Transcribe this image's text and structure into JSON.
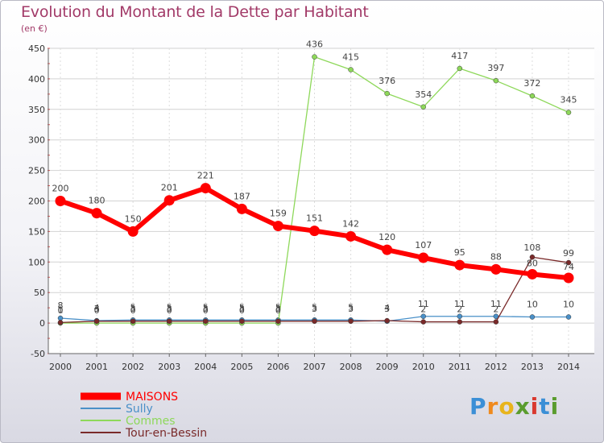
{
  "header": {
    "title": "Evolution du Montant de la Dette par Habitant",
    "unit": "(en €)"
  },
  "logo": {
    "letters": [
      {
        "ch": "P",
        "color": "#3b8fd6"
      },
      {
        "ch": "r",
        "color": "#ef8a1e"
      },
      {
        "ch": "o",
        "color": "#e8b41c"
      },
      {
        "ch": "x",
        "color": "#5a9c2e"
      },
      {
        "ch": "i",
        "color": "#d9392f"
      },
      {
        "ch": "t",
        "color": "#3b8fd6"
      },
      {
        "ch": "i",
        "color": "#5a9c2e"
      }
    ]
  },
  "chart_data": {
    "type": "line",
    "title": "Evolution du Montant de la Dette par Habitant",
    "subtitle": "(en €)",
    "x": [
      "2000",
      "2001",
      "2002",
      "2003",
      "2004",
      "2005",
      "2006",
      "2007",
      "2008",
      "2009",
      "2010",
      "2011",
      "2012",
      "2013",
      "2014"
    ],
    "ylim": [
      -50,
      450
    ],
    "yticks": [
      -50,
      0,
      50,
      100,
      150,
      200,
      250,
      300,
      350,
      400,
      450
    ],
    "grid": true,
    "legend": "bottom-left",
    "series": [
      {
        "name": "MAISONS",
        "color": "#ff0000",
        "values": [
          200,
          180,
          150,
          201,
          221,
          187,
          159,
          151,
          142,
          120,
          107,
          95,
          88,
          80,
          74
        ],
        "labels": [
          "200",
          "180",
          "150",
          "201",
          "221",
          "187",
          "159",
          "151",
          "142",
          "120",
          "107",
          "95",
          "88",
          "80",
          "74"
        ]
      },
      {
        "name": "Sully",
        "color": "#4a90c8",
        "values": [
          8,
          4,
          5,
          5,
          5,
          5,
          5,
          5,
          5,
          3,
          11,
          11,
          11,
          10,
          10
        ],
        "labels": [
          "8",
          "4",
          "5",
          "5",
          "5",
          "5",
          "5",
          "5",
          "5",
          "3",
          "11",
          "11",
          "11",
          "10",
          "10"
        ]
      },
      {
        "name": "Commes",
        "color": "#8ed85a",
        "values": [
          0,
          0,
          0,
          0,
          0,
          0,
          0,
          436,
          415,
          376,
          354,
          417,
          397,
          372,
          345
        ],
        "labels": [
          "0",
          "0",
          "0",
          "0",
          "0",
          "0",
          "0",
          "436",
          "415",
          "376",
          "354",
          "417",
          "397",
          "372",
          "345"
        ]
      },
      {
        "name": "Tour-en-Bessin",
        "color": "#7a2a2a",
        "values": [
          1,
          3,
          3,
          3,
          3,
          3,
          3,
          3,
          3,
          4,
          2,
          2,
          2,
          108,
          99
        ],
        "labels": [
          "1",
          "3",
          "3",
          "3",
          "3",
          "3",
          "3",
          "3",
          "3",
          "4",
          "2",
          "2",
          "2",
          "108",
          "99"
        ]
      }
    ]
  }
}
